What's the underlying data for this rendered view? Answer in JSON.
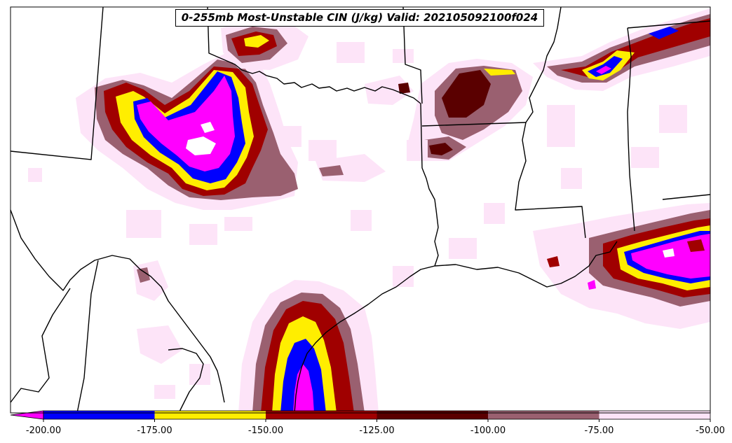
{
  "title": "0-255mb Most-Unstable CIN (J/kg) Valid: 202105092100f024",
  "colorbar": {
    "ticks": [
      "-200.00",
      "-175.00",
      "-150.00",
      "-125.00",
      "-100.00",
      "-75.00",
      "-50.00"
    ],
    "segments": [
      {
        "from": -200,
        "to": -175,
        "color": "#0000ff"
      },
      {
        "from": -175,
        "to": -150,
        "color": "#ffee00"
      },
      {
        "from": -150,
        "to": -125,
        "color": "#a00000"
      },
      {
        "from": -125,
        "to": -100,
        "color": "#5a0000"
      },
      {
        "from": -100,
        "to": -75,
        "color": "#9a6070"
      },
      {
        "from": -75,
        "to": -50,
        "color": "#fde4f8"
      }
    ],
    "extend_color": "#ff00ff"
  },
  "colors": {
    "magenta": "#ff00ff",
    "blue": "#0000ff",
    "yellow": "#ffee00",
    "red": "#a00000",
    "darkred": "#5a0000",
    "mauve": "#9a6070",
    "pink": "#fde4f8"
  }
}
